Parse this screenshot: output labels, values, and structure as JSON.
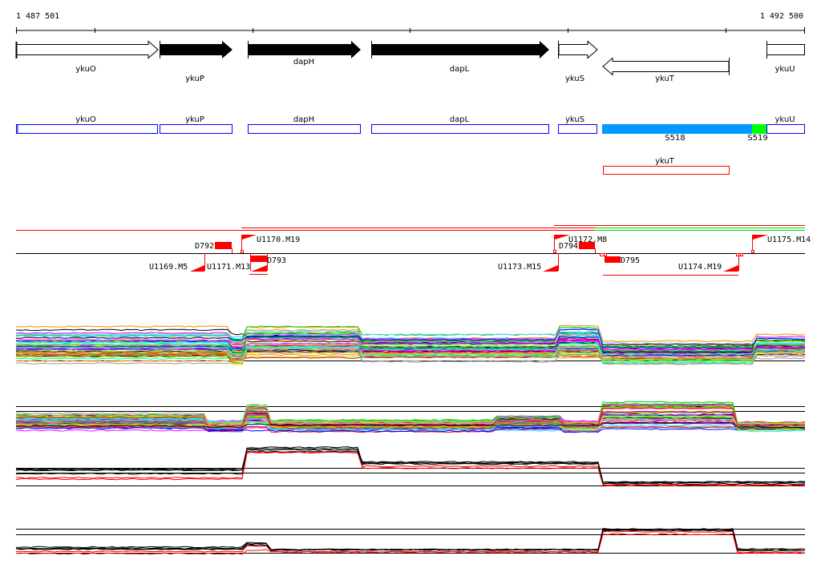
{
  "ruler": {
    "start_label": "1 487 501",
    "end_label": "1 492 500"
  },
  "genes": [
    {
      "name": "ykuO",
      "strand": "+",
      "style": "open"
    },
    {
      "name": "ykuP",
      "strand": "+",
      "style": "filled"
    },
    {
      "name": "dapH",
      "strand": "+",
      "style": "filled"
    },
    {
      "name": "dapL",
      "strand": "+",
      "style": "filled"
    },
    {
      "name": "ykuS",
      "strand": "+",
      "style": "open"
    },
    {
      "name": "ykuT",
      "strand": "-",
      "style": "open"
    },
    {
      "name": "ykuU",
      "strand": "+",
      "style": "open"
    }
  ],
  "annotation_boxes": [
    "ykuO",
    "ykuP",
    "dapH",
    "dapL",
    "ykuS",
    "ykuU"
  ],
  "segments": [
    {
      "name": "S518",
      "color": "#0099ff"
    },
    {
      "name": "S519",
      "color": "#00ff00"
    }
  ],
  "antisense_box": {
    "name": "ykuT",
    "color": "#ff0000"
  },
  "markers": {
    "D792": "D792",
    "D793": "D793",
    "D794": "D794",
    "D795": "D795",
    "U1169": "U1169.M5",
    "U1170": "U1170.M19",
    "U1171": "U1171.M13",
    "U1172": "U1172.M8",
    "U1173": "U1173.M15",
    "U1174": "U1174.M19",
    "U1175": "U1175.M14"
  },
  "colors": {
    "marker": "#ff0000",
    "annotation": "#0000ff",
    "axis": "#000000"
  }
}
